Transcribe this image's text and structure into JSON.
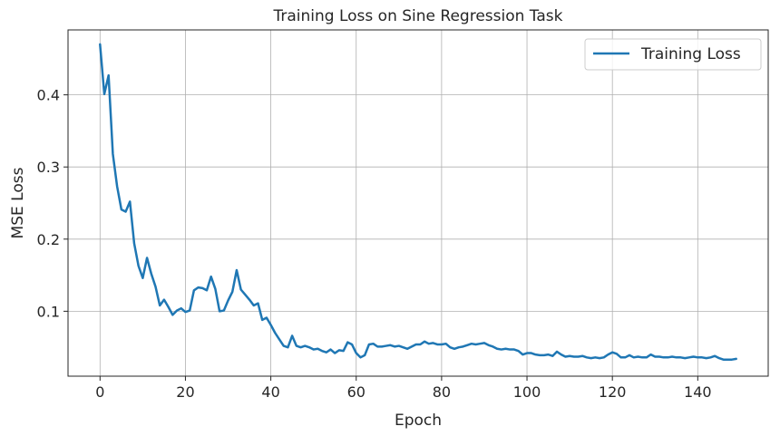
{
  "chart_data": {
    "type": "line",
    "title": "Training Loss on Sine Regression Task",
    "xlabel": "Epoch",
    "ylabel": "MSE Loss",
    "xlim": [
      -7.5,
      156.5
    ],
    "ylim": [
      0.01,
      0.49
    ],
    "xticks": [
      0,
      20,
      40,
      60,
      80,
      100,
      120,
      140
    ],
    "yticks": [
      0.1,
      0.2,
      0.3,
      0.4
    ],
    "ytick_labels": [
      "0.1",
      "0.2",
      "0.3",
      "0.4"
    ],
    "grid": true,
    "legend": {
      "placement": "top-right"
    },
    "series": [
      {
        "name": "Training Loss",
        "color": "#1f77b4",
        "values": [
          0.47,
          0.401,
          0.427,
          0.318,
          0.273,
          0.241,
          0.238,
          0.252,
          0.194,
          0.163,
          0.146,
          0.174,
          0.152,
          0.134,
          0.108,
          0.116,
          0.106,
          0.095,
          0.101,
          0.104,
          0.099,
          0.101,
          0.129,
          0.133,
          0.132,
          0.129,
          0.148,
          0.131,
          0.1,
          0.101,
          0.115,
          0.127,
          0.157,
          0.13,
          0.123,
          0.116,
          0.108,
          0.111,
          0.088,
          0.091,
          0.081,
          0.07,
          0.061,
          0.052,
          0.05,
          0.066,
          0.052,
          0.05,
          0.052,
          0.05,
          0.047,
          0.048,
          0.045,
          0.043,
          0.047,
          0.042,
          0.046,
          0.045,
          0.057,
          0.054,
          0.042,
          0.036,
          0.039,
          0.054,
          0.055,
          0.051,
          0.051,
          0.052,
          0.053,
          0.051,
          0.052,
          0.05,
          0.048,
          0.051,
          0.054,
          0.054,
          0.058,
          0.055,
          0.056,
          0.054,
          0.054,
          0.055,
          0.05,
          0.048,
          0.05,
          0.051,
          0.053,
          0.055,
          0.054,
          0.055,
          0.056,
          0.053,
          0.051,
          0.048,
          0.047,
          0.048,
          0.047,
          0.047,
          0.045,
          0.04,
          0.042,
          0.042,
          0.04,
          0.039,
          0.039,
          0.04,
          0.038,
          0.044,
          0.04,
          0.037,
          0.038,
          0.037,
          0.037,
          0.038,
          0.036,
          0.035,
          0.036,
          0.035,
          0.036,
          0.04,
          0.043,
          0.041,
          0.036,
          0.036,
          0.039,
          0.036,
          0.037,
          0.036,
          0.036,
          0.04,
          0.037,
          0.037,
          0.036,
          0.036,
          0.037,
          0.036,
          0.036,
          0.035,
          0.036,
          0.037,
          0.036,
          0.036,
          0.035,
          0.036,
          0.038,
          0.035,
          0.033,
          0.033,
          0.033,
          0.034
        ]
      }
    ]
  }
}
